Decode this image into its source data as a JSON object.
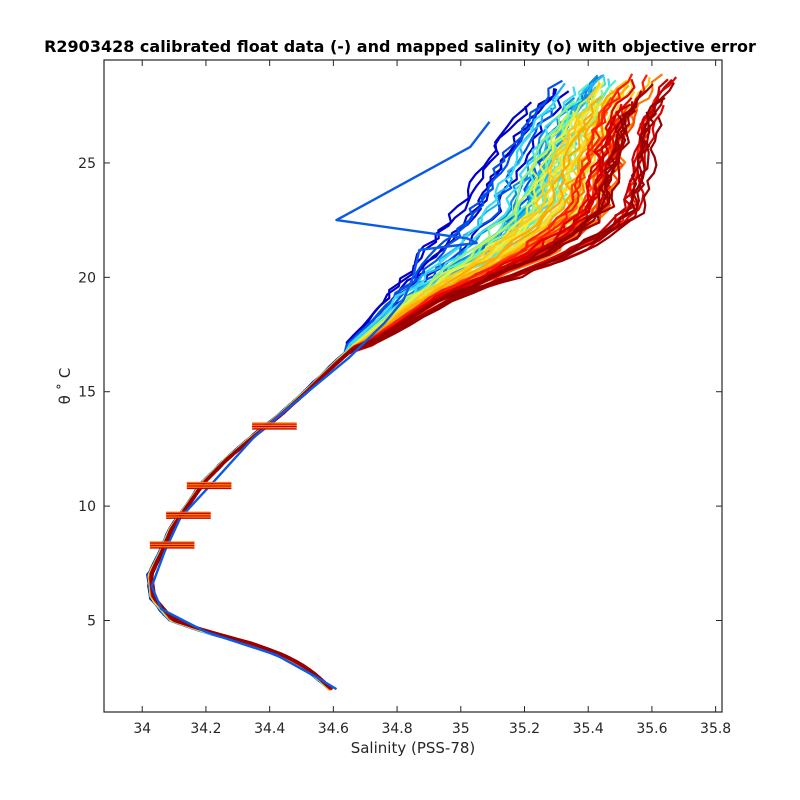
{
  "chart_data": {
    "type": "line",
    "title": "R2903428 calibrated float data (-) and mapped salinity (o) with objective error",
    "xlabel": "Salinity (PSS-78)",
    "ylabel": "θ ˚ C",
    "xlim": [
      33.88,
      35.82
    ],
    "ylim": [
      1.0,
      29.5
    ],
    "x_ticks": [
      34,
      34.2,
      34.4,
      34.6,
      34.8,
      35,
      35.2,
      35.4,
      35.6,
      35.8
    ],
    "x_tick_labels": [
      "34",
      "34.2",
      "34.4",
      "34.6",
      "34.8",
      "35",
      "35.2",
      "35.4",
      "35.6",
      "35.8"
    ],
    "y_ticks": [
      5,
      10,
      15,
      20,
      25
    ],
    "y_tick_labels": [
      "5",
      "10",
      "15",
      "20",
      "25"
    ],
    "grid": false,
    "legend": "none",
    "series_colors": [
      "#0000cd",
      "#0050e6",
      "#0a8ce6",
      "#1eb4f0",
      "#3cdcf0",
      "#50f0c8",
      "#8cf08c",
      "#c8f050",
      "#f0f03c",
      "#ffdc28",
      "#ffc814",
      "#ffaa00",
      "#ff7800",
      "#ff4600",
      "#ff1e00",
      "#e60000",
      "#c80000",
      "#a00000",
      "#960000"
    ],
    "anomaly_profile": {
      "color": "#0a5ae6",
      "theta": [
        26.8,
        25.7,
        22.5,
        21.7,
        21.5,
        21.2,
        20.0,
        19.0,
        18.0,
        16.5,
        15.0,
        13.0,
        11.0,
        9.5,
        8.0,
        6.5,
        5.5,
        4.5,
        3.5,
        2.5,
        2.0
      ],
      "salinity": [
        35.09,
        35.03,
        34.61,
        35.02,
        35.05,
        34.87,
        34.85,
        34.82,
        34.76,
        34.65,
        34.52,
        34.35,
        34.22,
        34.12,
        34.07,
        34.03,
        34.06,
        34.2,
        34.42,
        34.55,
        34.61
      ]
    },
    "envelope": {
      "theta": [
        28.8,
        27.0,
        25.0,
        23.0,
        22.0,
        21.0,
        20.0,
        19.0,
        18.0,
        17.0,
        16.0,
        15.0,
        14.0,
        13.0,
        12.0,
        11.0,
        10.0,
        9.0,
        8.0,
        7.0,
        6.0,
        5.0,
        4.5,
        4.0,
        3.5,
        3.0,
        2.5,
        2.0
      ],
      "s_min": [
        35.28,
        35.18,
        35.07,
        34.99,
        34.93,
        34.87,
        34.82,
        34.76,
        34.7,
        34.63,
        34.56,
        34.49,
        34.41,
        34.32,
        34.24,
        34.17,
        34.12,
        34.07,
        34.04,
        34.0,
        34.0,
        34.05,
        34.14,
        34.27,
        34.38,
        34.46,
        34.52,
        34.57
      ],
      "s_max": [
        35.7,
        35.62,
        35.6,
        35.58,
        35.5,
        35.37,
        35.18,
        34.98,
        34.85,
        34.72,
        34.63,
        34.55,
        34.47,
        34.38,
        34.29,
        34.22,
        34.17,
        34.12,
        34.09,
        34.06,
        34.08,
        34.16,
        34.3,
        34.44,
        34.52,
        34.57,
        34.6,
        34.62
      ]
    }
  }
}
